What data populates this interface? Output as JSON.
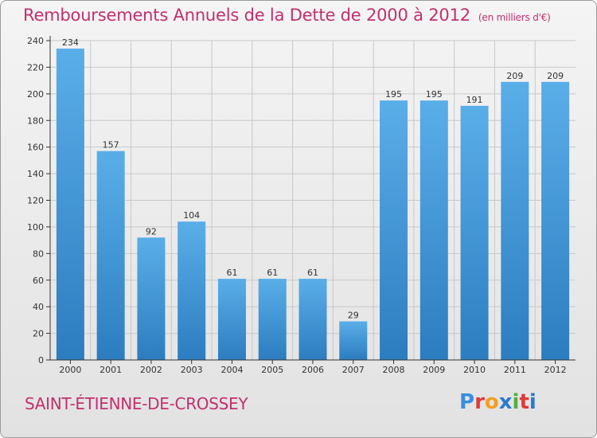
{
  "header": {
    "title": "Remboursements Annuels de la Dette de 2000 à 2012",
    "subtitle": "(en milliers d'€)"
  },
  "footer": {
    "commune": "SAINT-ÉTIENNE-DE-CROSSEY",
    "brand": "Proxiti",
    "brand_letters": [
      "P",
      "r",
      "o",
      "x",
      "i",
      "t",
      "i"
    ],
    "brand_colors": [
      "#3a8ee0",
      "#e03a3a",
      "#f0a020",
      "#2a7ad0",
      "#50b040",
      "#e03a3a",
      "#2a7ad0"
    ]
  },
  "colors": {
    "title": "#c2306e",
    "bar_top": "#5aaee8",
    "bar_bottom": "#2c7dc0",
    "grid": "#c8c8c8",
    "axis": "#333333"
  },
  "chart_data": {
    "type": "bar",
    "title": "Remboursements Annuels de la Dette de 2000 à 2012",
    "subtitle": "(en milliers d'€)",
    "categories": [
      "2000",
      "2001",
      "2002",
      "2003",
      "2004",
      "2005",
      "2006",
      "2007",
      "2008",
      "2009",
      "2010",
      "2011",
      "2012"
    ],
    "values": [
      234,
      157,
      92,
      104,
      61,
      61,
      61,
      29,
      195,
      195,
      191,
      209,
      209
    ],
    "xlabel": "",
    "ylabel": "",
    "ylim": [
      0,
      240
    ],
    "yticks": [
      0,
      20,
      40,
      60,
      80,
      100,
      120,
      140,
      160,
      180,
      200,
      220,
      240
    ],
    "grid": true
  }
}
